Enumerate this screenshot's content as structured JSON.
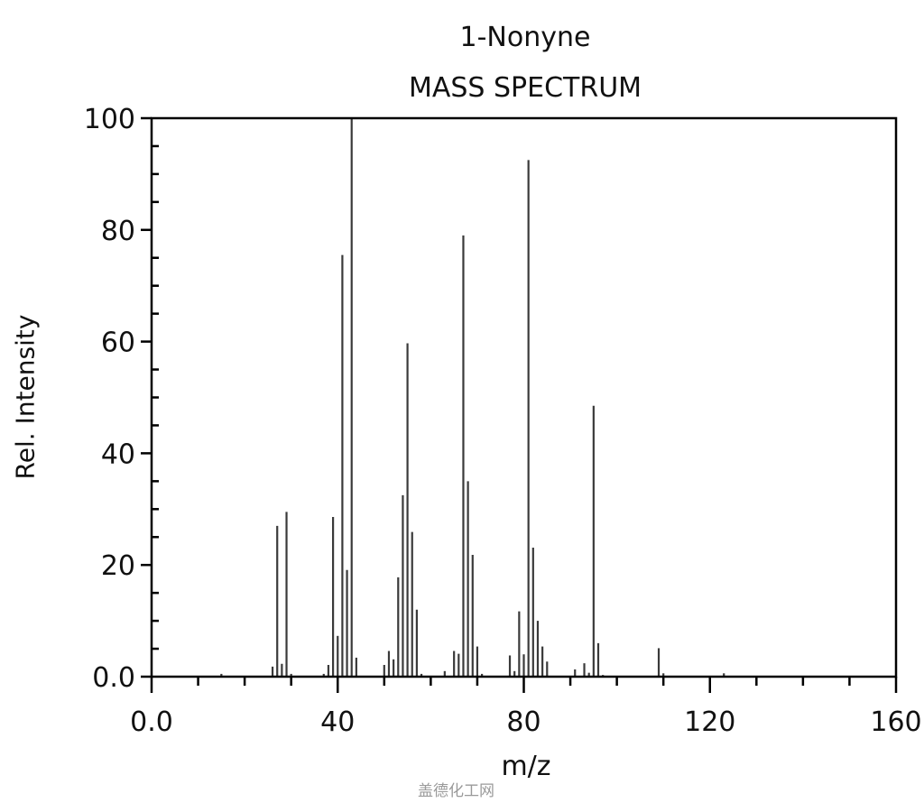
{
  "chart_data": {
    "type": "bar",
    "title": "1-Nonyne",
    "subtitle": "MASS SPECTRUM",
    "xlabel": "m/z",
    "ylabel": "Rel. Intensity",
    "xlim": [
      0,
      160
    ],
    "ylim": [
      0,
      100
    ],
    "x_ticks": [
      0,
      40,
      80,
      120,
      160
    ],
    "x_tick_labels": [
      "0.0",
      "40",
      "80",
      "120",
      "160"
    ],
    "x_minor_step": 10,
    "y_ticks": [
      0,
      20,
      40,
      60,
      80,
      100
    ],
    "y_tick_labels": [
      "0.0",
      "20",
      "40",
      "60",
      "80",
      "100"
    ],
    "y_minor_step": 5,
    "grid": false,
    "legend": null,
    "x": [
      15,
      26,
      27,
      28,
      29,
      30,
      37,
      38,
      39,
      40,
      41,
      42,
      43,
      44,
      50,
      51,
      52,
      53,
      54,
      55,
      56,
      57,
      58,
      63,
      65,
      66,
      67,
      68,
      69,
      70,
      71,
      77,
      78,
      79,
      80,
      81,
      82,
      83,
      84,
      85,
      91,
      93,
      94,
      95,
      96,
      97,
      109,
      110,
      123
    ],
    "values": [
      0.5,
      1.8,
      27.0,
      2.3,
      29.5,
      0.5,
      0.5,
      2.1,
      28.6,
      7.3,
      75.5,
      19.1,
      100.0,
      3.4,
      2.1,
      4.6,
      3.1,
      17.8,
      32.5,
      59.7,
      25.9,
      12.0,
      0.5,
      1.0,
      4.6,
      4.1,
      79.0,
      35.0,
      21.8,
      5.4,
      0.5,
      3.8,
      1.0,
      11.7,
      4.0,
      92.5,
      23.1,
      10.0,
      5.4,
      2.7,
      1.3,
      2.4,
      0.7,
      48.5,
      6.0,
      0.3,
      5.1,
      0.6,
      0.6
    ]
  },
  "watermark": "盖德化工网",
  "colors": {
    "bar": "#3a3a3a",
    "axis": "#000000",
    "background": "#ffffff"
  }
}
